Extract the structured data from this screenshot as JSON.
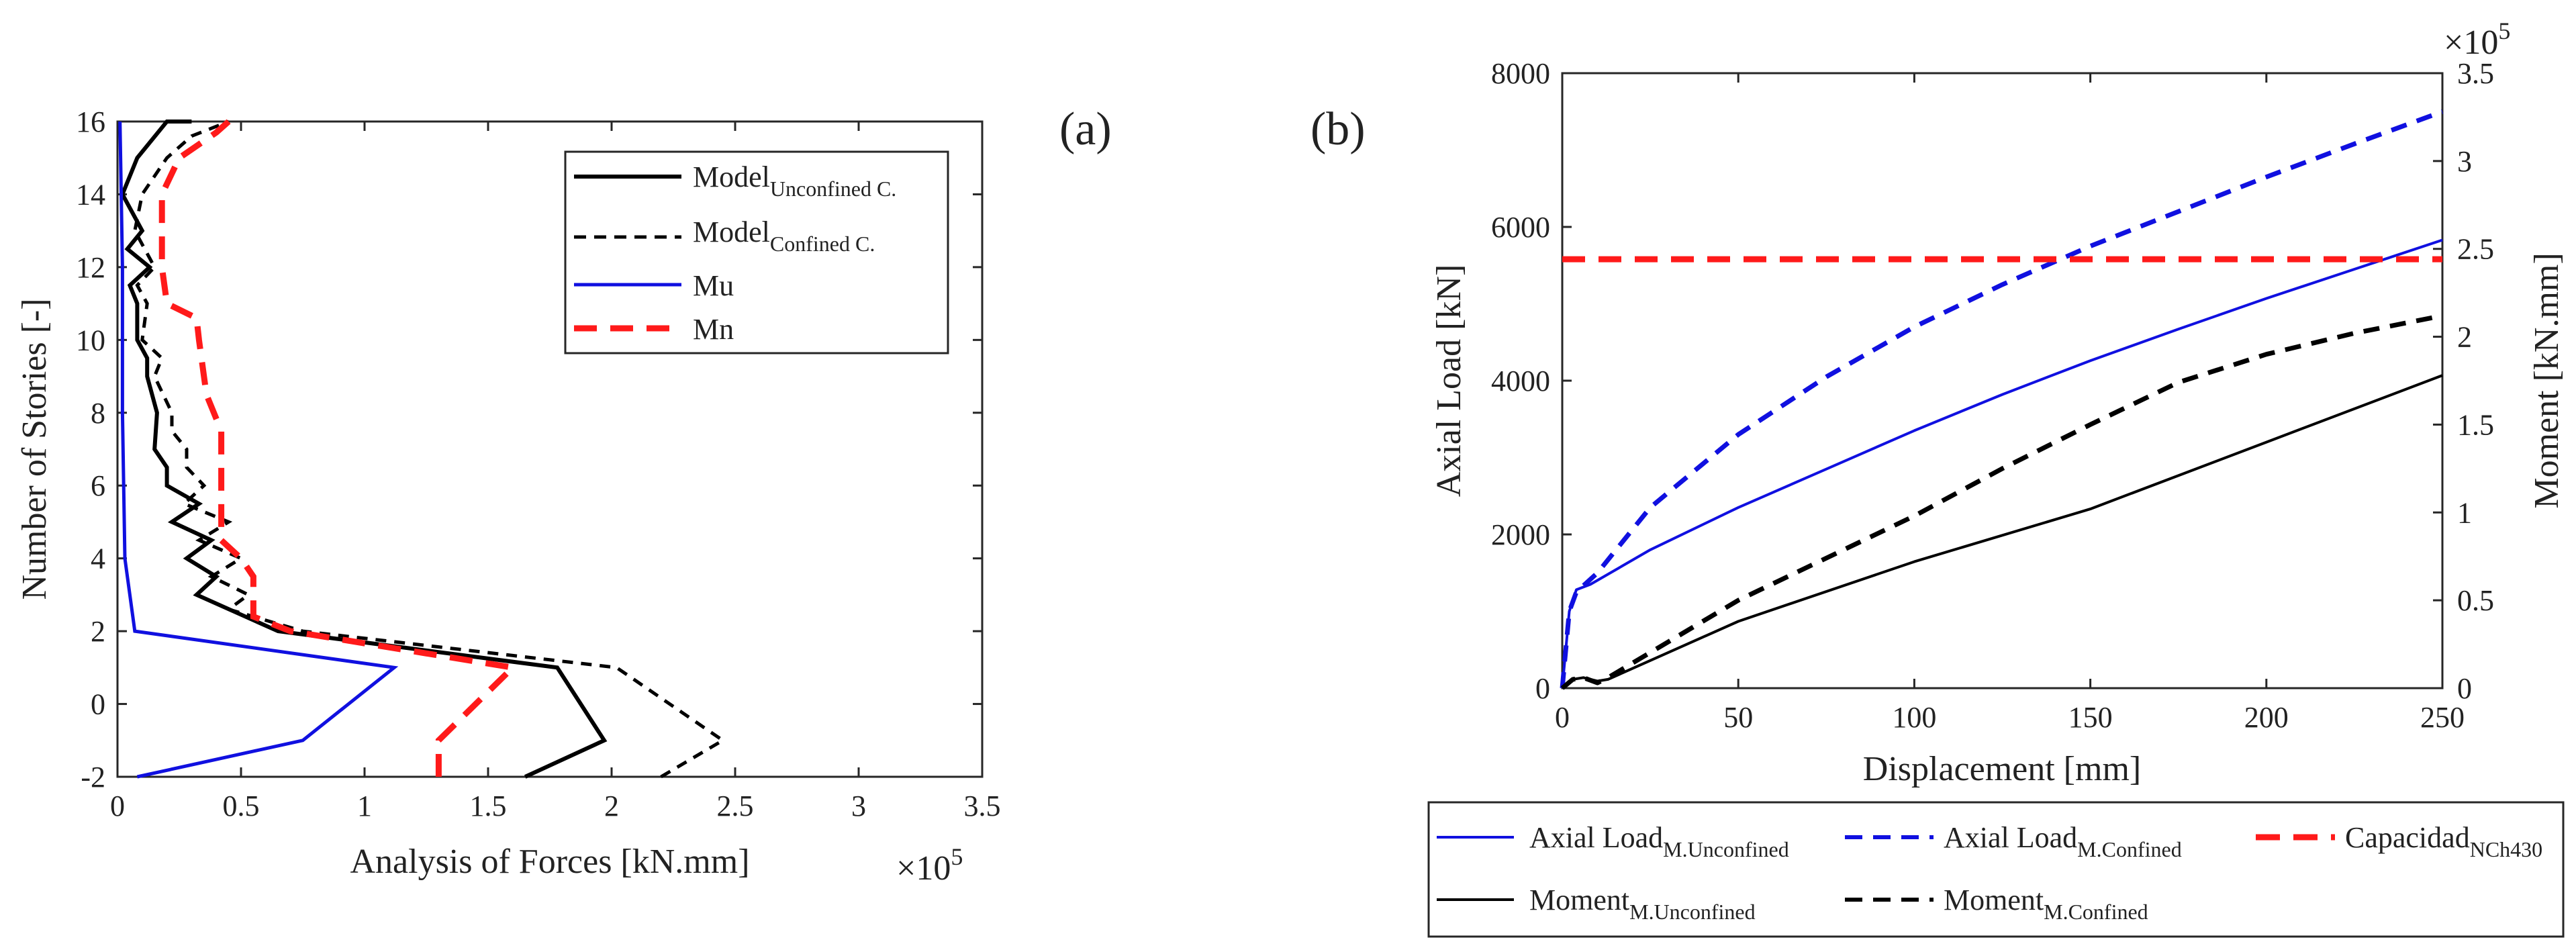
{
  "chart_data": [
    {
      "panel_label": "(a)",
      "type": "line",
      "xlabel": "Analysis of Forces [kN.mm]",
      "ylabel": "Number of Stories [-]",
      "x_exponent": "×10",
      "x_exponent_power": "5",
      "xlim": [
        0,
        3.5
      ],
      "ylim": [
        -2,
        16
      ],
      "xticks": [
        0,
        0.5,
        1,
        1.5,
        2,
        2.5,
        3,
        3.5
      ],
      "xtick_labels": [
        "0",
        "0.5",
        "1",
        "1.5",
        "2",
        "2.5",
        "3",
        "3.5"
      ],
      "yticks": [
        -2,
        0,
        2,
        4,
        6,
        8,
        10,
        12,
        14,
        16
      ],
      "ytick_labels": [
        "-2",
        "0",
        "2",
        "4",
        "6",
        "8",
        "10",
        "12",
        "14",
        "16"
      ],
      "legend": {
        "position": "top-right",
        "entries": [
          {
            "main": "Model",
            "sub": "Unconfined C.",
            "color": "#000000",
            "style": "solid"
          },
          {
            "main": "Model",
            "sub": "Confined C.",
            "color": "#000000",
            "style": "dashed"
          },
          {
            "main": "Mu",
            "sub": "",
            "color": "#1010e0",
            "style": "solid"
          },
          {
            "main": "Mn",
            "sub": "",
            "color": "#ff1a1a",
            "style": "dashed"
          }
        ]
      },
      "series": [
        {
          "name": "Model Unconfined C.",
          "color": "#000000",
          "style": "solid",
          "width": 6,
          "points": [
            [
              1.65,
              -2
            ],
            [
              1.97,
              -1
            ],
            [
              1.78,
              1
            ],
            [
              0.65,
              2
            ],
            [
              0.32,
              3
            ],
            [
              0.4,
              3.5
            ],
            [
              0.28,
              4
            ],
            [
              0.38,
              4.5
            ],
            [
              0.22,
              5
            ],
            [
              0.33,
              5.5
            ],
            [
              0.2,
              6
            ],
            [
              0.2,
              6.5
            ],
            [
              0.15,
              7
            ],
            [
              0.16,
              8
            ],
            [
              0.12,
              9
            ],
            [
              0.12,
              9.5
            ],
            [
              0.08,
              10
            ],
            [
              0.08,
              11
            ],
            [
              0.05,
              11.5
            ],
            [
              0.13,
              12
            ],
            [
              0.04,
              12.5
            ],
            [
              0.1,
              13
            ],
            [
              0.02,
              14
            ],
            [
              0.08,
              15
            ],
            [
              0.2,
              16
            ],
            [
              0.3,
              16
            ]
          ]
        },
        {
          "name": "Model Confined C.",
          "color": "#000000",
          "style": "dashed",
          "width": 5,
          "points": [
            [
              2.2,
              -2
            ],
            [
              2.45,
              -1
            ],
            [
              2.02,
              1
            ],
            [
              0.75,
              2
            ],
            [
              0.45,
              2.6
            ],
            [
              0.53,
              3
            ],
            [
              0.38,
              3.5
            ],
            [
              0.5,
              4
            ],
            [
              0.33,
              4.5
            ],
            [
              0.45,
              5
            ],
            [
              0.27,
              5.5
            ],
            [
              0.35,
              6
            ],
            [
              0.28,
              6.5
            ],
            [
              0.28,
              7
            ],
            [
              0.22,
              7.5
            ],
            [
              0.22,
              8
            ],
            [
              0.15,
              9
            ],
            [
              0.18,
              9.5
            ],
            [
              0.1,
              10
            ],
            [
              0.12,
              11
            ],
            [
              0.08,
              11.5
            ],
            [
              0.15,
              12
            ],
            [
              0.07,
              13
            ],
            [
              0.1,
              14
            ],
            [
              0.2,
              15
            ],
            [
              0.3,
              15.6
            ],
            [
              0.45,
              16
            ]
          ]
        },
        {
          "name": "Mu",
          "color": "#1010e0",
          "style": "solid",
          "width": 5,
          "points": [
            [
              0.08,
              -2
            ],
            [
              0.75,
              -1
            ],
            [
              1.12,
              1
            ],
            [
              0.07,
              2
            ],
            [
              0.03,
              4
            ],
            [
              0.02,
              8
            ],
            [
              0.02,
              12
            ],
            [
              0.01,
              16
            ]
          ]
        },
        {
          "name": "Mn",
          "color": "#ff1a1a",
          "style": "dashed",
          "width": 9,
          "points": [
            [
              1.3,
              -2
            ],
            [
              1.3,
              -1
            ],
            [
              1.6,
              1
            ],
            [
              0.7,
              2
            ],
            [
              0.55,
              2.4
            ],
            [
              0.55,
              3.5
            ],
            [
              0.5,
              4
            ],
            [
              0.42,
              4.5
            ],
            [
              0.42,
              7.5
            ],
            [
              0.36,
              8.5
            ],
            [
              0.33,
              10
            ],
            [
              0.32,
              10.6
            ],
            [
              0.2,
              11
            ],
            [
              0.18,
              12
            ],
            [
              0.18,
              14
            ],
            [
              0.25,
              15
            ],
            [
              0.4,
              15.7
            ],
            [
              0.45,
              16
            ]
          ]
        }
      ]
    },
    {
      "panel_label": "(b)",
      "type": "line",
      "xlabel": "Displacement [mm]",
      "ylabel": "Axial Load [kN]",
      "ylabel_right": "Moment [kN.mm]",
      "y2_exponent": "×10",
      "y2_exponent_power": "5",
      "xlim": [
        0,
        250
      ],
      "ylim": [
        0,
        8000
      ],
      "y2lim": [
        0,
        3.5
      ],
      "xticks": [
        0,
        50,
        100,
        150,
        200,
        250
      ],
      "xtick_labels": [
        "0",
        "50",
        "100",
        "150",
        "200",
        "250"
      ],
      "yticks": [
        0,
        2000,
        4000,
        6000,
        8000
      ],
      "ytick_labels": [
        "0",
        "2000",
        "4000",
        "6000",
        "8000"
      ],
      "y2ticks": [
        0,
        0.5,
        1,
        1.5,
        2,
        2.5,
        3,
        3.5
      ],
      "y2tick_labels": [
        "0",
        "0.5",
        "1",
        "1.5",
        "2",
        "2.5",
        "3",
        "3.5"
      ],
      "legend": {
        "position": "bottom (outside)",
        "entries": [
          {
            "main": "Axial Load",
            "sub": "M.Unconfined",
            "color": "#1010e0",
            "style": "solid",
            "axis": "left"
          },
          {
            "main": "Axial Load",
            "sub": "M.Confined",
            "color": "#1010e0",
            "style": "dashed",
            "axis": "left"
          },
          {
            "main": "Capacidad",
            "sub": "NCh430",
            "color": "#ff1a1a",
            "style": "dashed",
            "axis": "left"
          },
          {
            "main": "Moment",
            "sub": "M.Unconfined",
            "color": "#000000",
            "style": "solid",
            "axis": "right"
          },
          {
            "main": "Moment",
            "sub": "M.Confined",
            "color": "#000000",
            "style": "dashed",
            "axis": "right"
          }
        ]
      },
      "series": [
        {
          "name": "Axial Load M.Unconfined",
          "axis": "left",
          "color": "#1010e0",
          "style": "solid",
          "width": 4,
          "points": [
            [
              0,
              0
            ],
            [
              2,
              1000
            ],
            [
              4,
              1280
            ],
            [
              8,
              1350
            ],
            [
              25,
              1800
            ],
            [
              50,
              2350
            ],
            [
              75,
              2850
            ],
            [
              100,
              3350
            ],
            [
              125,
              3820
            ],
            [
              150,
              4260
            ],
            [
              175,
              4670
            ],
            [
              200,
              5070
            ],
            [
              225,
              5450
            ],
            [
              250,
              5830
            ]
          ]
        },
        {
          "name": "Axial Load M.Confined",
          "axis": "left",
          "color": "#1010e0",
          "style": "dashed",
          "width": 7,
          "points": [
            [
              0,
              0
            ],
            [
              2,
              1000
            ],
            [
              4,
              1250
            ],
            [
              10,
              1500
            ],
            [
              25,
              2350
            ],
            [
              50,
              3300
            ],
            [
              75,
              4050
            ],
            [
              100,
              4700
            ],
            [
              125,
              5250
            ],
            [
              150,
              5750
            ],
            [
              175,
              6200
            ],
            [
              200,
              6650
            ],
            [
              225,
              7080
            ],
            [
              250,
              7500
            ]
          ]
        },
        {
          "name": "Capacidad NCh430",
          "axis": "left",
          "color": "#ff1a1a",
          "style": "dashed",
          "width": 9,
          "points": [
            [
              0,
              5580
            ],
            [
              250,
              5580
            ]
          ]
        },
        {
          "name": "Moment M.Unconfined",
          "axis": "right",
          "color": "#000000",
          "style": "solid",
          "width": 4,
          "points": [
            [
              0,
              0
            ],
            [
              3,
              0.05
            ],
            [
              6,
              0.06
            ],
            [
              10,
              0.04
            ],
            [
              13,
              0.05
            ],
            [
              50,
              0.38
            ],
            [
              100,
              0.72
            ],
            [
              150,
              1.02
            ],
            [
              200,
              1.4
            ],
            [
              250,
              1.78
            ]
          ]
        },
        {
          "name": "Moment M.Confined",
          "axis": "right",
          "color": "#000000",
          "style": "dashed",
          "width": 7,
          "points": [
            [
              0,
              0
            ],
            [
              3,
              0.05
            ],
            [
              6,
              0.06
            ],
            [
              10,
              0.03
            ],
            [
              13,
              0.06
            ],
            [
              50,
              0.5
            ],
            [
              100,
              0.98
            ],
            [
              125,
              1.25
            ],
            [
              150,
              1.5
            ],
            [
              175,
              1.74
            ],
            [
              200,
              1.9
            ],
            [
              225,
              2.02
            ],
            [
              250,
              2.12
            ]
          ]
        }
      ]
    }
  ]
}
